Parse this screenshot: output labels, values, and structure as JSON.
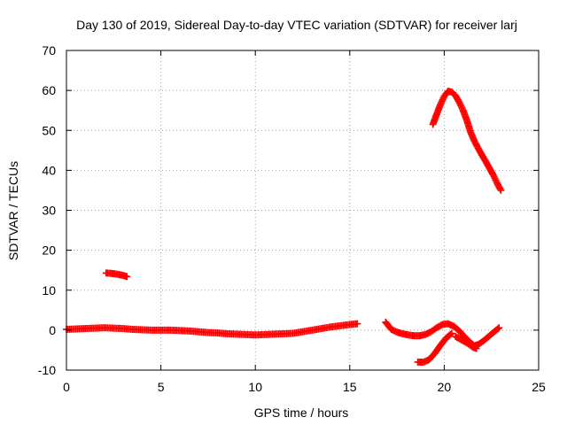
{
  "chart_data": {
    "type": "scatter",
    "title": "Day 130 of 2019, Sidereal Day-to-day VTEC variation (SDTVAR) for receiver larj",
    "xlabel": "GPS time / hours",
    "ylabel": "SDTVAR / TECUs",
    "xlim": [
      0,
      25
    ],
    "ylim": [
      -10,
      70
    ],
    "x_ticks": [
      0,
      5,
      10,
      15,
      20,
      25
    ],
    "y_ticks": [
      -10,
      0,
      10,
      20,
      30,
      40,
      50,
      60,
      70
    ],
    "grid": true,
    "marker": "plus",
    "colors": {
      "series": "#ff0000",
      "grid": "#a0a0a0",
      "axis": "#000000"
    },
    "series": [
      {
        "segments": [
          {
            "x": [
              0.0,
              0.5,
              1.0,
              1.5,
              2.0,
              2.5,
              3.0,
              3.5,
              4.0,
              4.5,
              5.0,
              5.5,
              6.0,
              6.5,
              7.0,
              7.5,
              8.0,
              8.5,
              9.0,
              9.5,
              10.0,
              10.5,
              11.0,
              11.5,
              12.0,
              12.5,
              13.0,
              13.5,
              14.0,
              14.5,
              15.0,
              15.4
            ],
            "y": [
              0.2,
              0.3,
              0.4,
              0.5,
              0.6,
              0.5,
              0.4,
              0.2,
              0.1,
              0.0,
              0.0,
              0.0,
              -0.1,
              -0.2,
              -0.4,
              -0.6,
              -0.7,
              -0.9,
              -1.0,
              -1.1,
              -1.2,
              -1.1,
              -1.0,
              -0.9,
              -0.8,
              -0.4,
              0.0,
              0.4,
              0.8,
              1.1,
              1.4,
              1.6
            ]
          },
          {
            "x": [
              2.1,
              2.4,
              2.7,
              3.0,
              3.2
            ],
            "y": [
              14.3,
              14.2,
              14.0,
              13.7,
              13.4
            ]
          },
          {
            "x": [
              16.9,
              17.2,
              17.5,
              17.8,
              18.1,
              18.4,
              18.7,
              19.0,
              19.3,
              19.6,
              19.9,
              20.2,
              20.5,
              20.8,
              21.1,
              21.4,
              21.6,
              21.8,
              22.1,
              22.4,
              22.7,
              22.9
            ],
            "y": [
              2.0,
              0.2,
              -0.5,
              -0.9,
              -1.2,
              -1.4,
              -1.4,
              -1.1,
              -0.4,
              0.6,
              1.4,
              1.6,
              1.0,
              -0.2,
              -1.8,
              -3.2,
              -3.9,
              -3.6,
              -2.6,
              -1.4,
              -0.2,
              0.6
            ]
          },
          {
            "x": [
              18.6,
              18.9,
              19.2,
              19.5,
              19.8,
              20.1,
              20.4
            ],
            "y": [
              -8.0,
              -8.0,
              -7.4,
              -5.8,
              -3.8,
              -2.0,
              -0.8
            ]
          },
          {
            "x": [
              20.6,
              20.9,
              21.2,
              21.5,
              21.7
            ],
            "y": [
              -1.6,
              -2.4,
              -3.2,
              -4.2,
              -4.6
            ]
          },
          {
            "x": [
              19.4,
              19.6,
              19.8,
              20.0,
              20.2,
              20.4,
              20.6,
              20.8,
              21.0,
              21.2,
              21.4,
              21.6,
              21.8,
              22.0,
              22.2,
              22.4,
              22.6,
              22.8,
              23.0
            ],
            "y": [
              51.5,
              54.0,
              56.5,
              58.5,
              59.8,
              59.6,
              58.7,
              57.0,
              55.0,
              52.5,
              49.5,
              47.3,
              45.5,
              43.8,
              42.2,
              40.5,
              38.8,
              36.8,
              35.0
            ]
          }
        ]
      }
    ]
  }
}
